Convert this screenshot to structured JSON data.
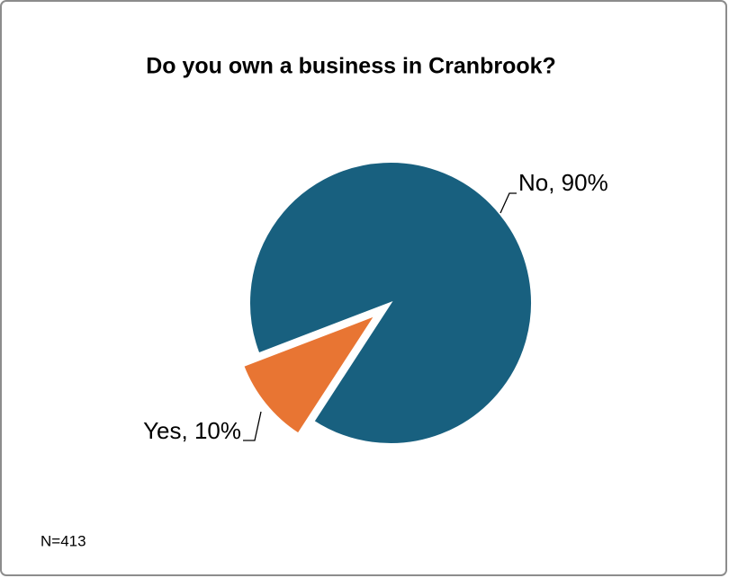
{
  "chart_data": {
    "type": "pie",
    "title": "Do you own a business in Cranbrook?",
    "values": [
      10,
      90
    ],
    "value_labels": [
      "Yes, 10%",
      "No, 90%"
    ],
    "colors": [
      "#e87533",
      "#18607f"
    ],
    "exploded": [
      true,
      false
    ],
    "note": "N=413"
  }
}
